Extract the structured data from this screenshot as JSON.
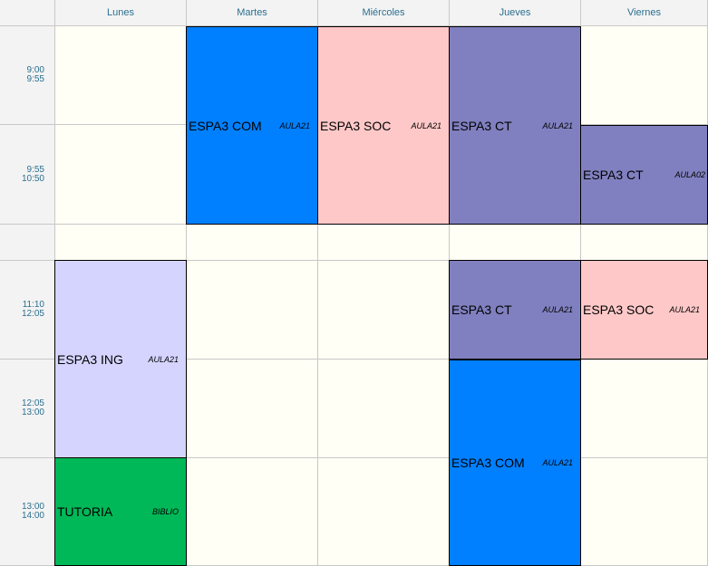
{
  "days": [
    "Lunes",
    "Martes",
    "Miércoles",
    "Jueves",
    "Viernes"
  ],
  "times": [
    {
      "start": "9:00",
      "end": "9:55"
    },
    {
      "start": "9:55",
      "end": "10:50"
    },
    {
      "start": "",
      "end": ""
    },
    {
      "start": "11:10",
      "end": "12:05"
    },
    {
      "start": "12:05",
      "end": "13:00"
    },
    {
      "start": "13:00",
      "end": "14:00"
    }
  ],
  "colors": {
    "com": "#0080ff",
    "soc": "#ffc8c8",
    "ct": "#8080c0",
    "ing": "#d4d4ff",
    "tutoria": "#00b858"
  },
  "classes": [
    {
      "subject": "ESPA3 COM",
      "room": "AULA21",
      "color": "#0080ff"
    },
    {
      "subject": "ESPA3 SOC",
      "room": "AULA21",
      "color": "#ffc8c8"
    },
    {
      "subject": "ESPA3 CT",
      "room": "AULA21",
      "color": "#8080c0"
    },
    {
      "subject": "ESPA3 CT",
      "room": "AULA02",
      "color": "#8080c0"
    },
    {
      "subject": "ESPA3 ING",
      "room": "AULA21",
      "color": "#d4d4ff"
    },
    {
      "subject": "ESPA3 CT",
      "room": "AULA21",
      "color": "#8080c0"
    },
    {
      "subject": "ESPA3 SOC",
      "room": "AULA21",
      "color": "#ffc8c8"
    },
    {
      "subject": "ESPA3 COM",
      "room": "AULA21",
      "color": "#0080ff"
    },
    {
      "subject": "TUTORIA",
      "room": "BIBLIO",
      "color": "#00b858"
    }
  ]
}
